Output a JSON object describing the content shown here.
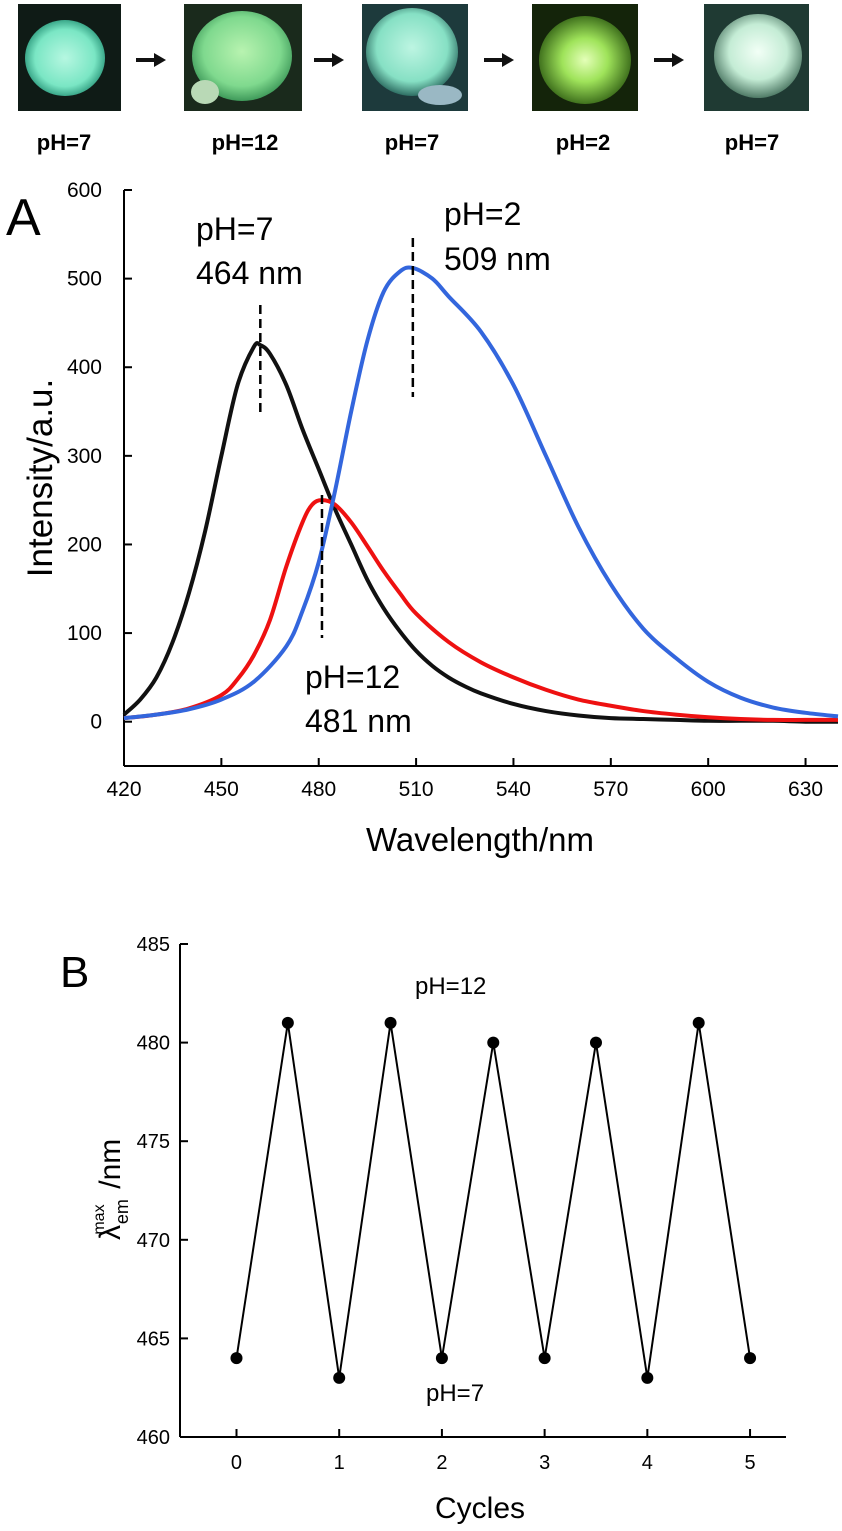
{
  "photos": {
    "labels": [
      "pH=7",
      "pH=12",
      "pH=7",
      "pH=2",
      "pH=7"
    ]
  },
  "chart_data": [
    {
      "panel": "A",
      "type": "line",
      "xlabel": "Wavelength/nm",
      "ylabel": "Intensity/a.u.",
      "xlim": [
        420,
        640
      ],
      "ylim": [
        -50,
        600
      ],
      "xticks": [
        420,
        450,
        480,
        510,
        540,
        570,
        600,
        630
      ],
      "yticks": [
        0,
        100,
        200,
        300,
        400,
        500,
        600
      ],
      "series": [
        {
          "color": "#111111",
          "x": [
            420,
            425,
            430,
            435,
            440,
            445,
            450,
            455,
            460,
            462,
            465,
            470,
            475,
            480,
            485,
            490,
            495,
            500,
            505,
            510,
            515,
            520,
            525,
            530,
            540,
            550,
            560,
            570,
            580,
            590,
            600,
            610,
            620,
            630,
            640
          ],
          "y": [
            8,
            25,
            50,
            90,
            145,
            215,
            300,
            380,
            423,
            425,
            415,
            380,
            330,
            285,
            240,
            200,
            160,
            128,
            102,
            80,
            63,
            50,
            40,
            32,
            20,
            12,
            7,
            4,
            3,
            2,
            1,
            1,
            1,
            0,
            0
          ]
        },
        {
          "color": "#ee1111",
          "x": [
            420,
            430,
            440,
            450,
            455,
            460,
            465,
            470,
            475,
            478,
            481,
            485,
            490,
            495,
            500,
            505,
            510,
            520,
            530,
            540,
            550,
            560,
            570,
            580,
            590,
            600,
            610,
            620,
            630,
            640
          ],
          "y": [
            4,
            8,
            15,
            30,
            48,
            75,
            115,
            175,
            225,
            245,
            250,
            245,
            225,
            198,
            170,
            145,
            122,
            90,
            67,
            50,
            36,
            25,
            18,
            12,
            8,
            5,
            3,
            2,
            2,
            2
          ]
        },
        {
          "color": "#3366dd",
          "x": [
            420,
            430,
            440,
            450,
            460,
            470,
            475,
            480,
            485,
            490,
            495,
            500,
            505,
            509,
            515,
            520,
            530,
            540,
            550,
            560,
            570,
            580,
            590,
            600,
            610,
            620,
            630,
            640
          ],
          "y": [
            4,
            8,
            14,
            25,
            45,
            85,
            125,
            180,
            260,
            350,
            430,
            485,
            508,
            512,
            500,
            480,
            440,
            380,
            300,
            220,
            155,
            105,
            72,
            45,
            27,
            16,
            10,
            6
          ]
        }
      ],
      "annotations": [
        {
          "line1": "pH=7",
          "line2": "464 nm"
        },
        {
          "line1": "pH=2",
          "line2": "509 nm"
        },
        {
          "line1": "pH=12",
          "line2": "481 nm"
        }
      ]
    },
    {
      "panel": "B",
      "type": "line",
      "xlabel": "Cycles",
      "ylabel_main": "λ",
      "ylabel_sup": "max",
      "ylabel_sub": "em",
      "ylabel_tail": "/nm",
      "xlim": [
        -0.55,
        5.35
      ],
      "ylim": [
        460,
        485
      ],
      "xticks": [
        0,
        1,
        2,
        3,
        4,
        5
      ],
      "yticks": [
        460,
        465,
        470,
        475,
        480,
        485
      ],
      "x": [
        0,
        0.5,
        1,
        1.5,
        2,
        2.5,
        3,
        3.5,
        4,
        4.5,
        5
      ],
      "y": [
        464,
        481,
        463,
        481,
        464,
        480,
        464,
        480,
        463,
        481,
        464
      ],
      "annotations": [
        {
          "text": "pH=12"
        },
        {
          "text": "pH=7"
        }
      ]
    }
  ]
}
